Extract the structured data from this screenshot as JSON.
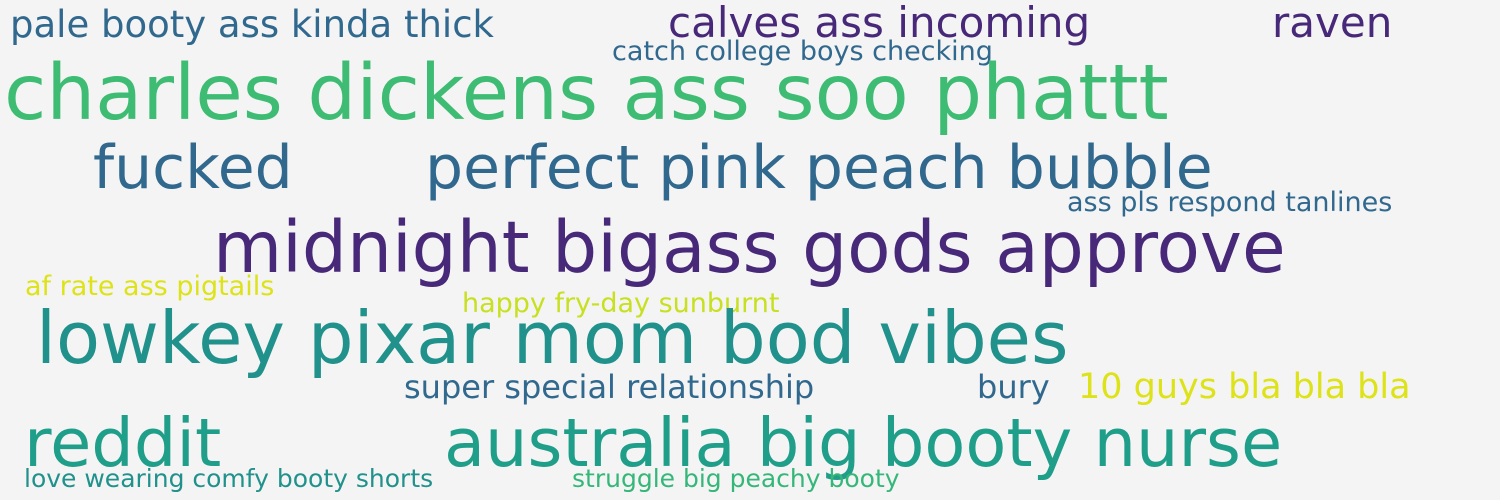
{
  "words": [
    {
      "text": "pale booty ass kinda thick",
      "color": "#31688e"
    },
    {
      "text": "calves ass incoming",
      "color": "#482878"
    },
    {
      "text": "raven",
      "color": "#482878"
    },
    {
      "text": "catch college boys checking",
      "color": "#31688e"
    },
    {
      "text": "charles dickens ass soo phattt",
      "color": "#3fbc73"
    },
    {
      "text": "fucked",
      "color": "#31688e"
    },
    {
      "text": "perfect pink peach bubble",
      "color": "#31688e"
    },
    {
      "text": "ass pls respond tanlines",
      "color": "#31688e"
    },
    {
      "text": "midnight bigass gods approve",
      "color": "#482878"
    },
    {
      "text": "af rate ass pigtails",
      "color": "#dde318"
    },
    {
      "text": "happy fry-day sunburnt",
      "color": "#c8e020"
    },
    {
      "text": "lowkey pixar mom bod vibes",
      "color": "#21918c"
    },
    {
      "text": "super special relationship",
      "color": "#31688e"
    },
    {
      "text": "bury",
      "color": "#31688e"
    },
    {
      "text": "10 guys bla bla bla",
      "color": "#dde318"
    },
    {
      "text": "reddit",
      "color": "#1f9e89"
    },
    {
      "text": "australia big booty nurse",
      "color": "#1f9e89"
    },
    {
      "text": "love wearing comfy booty shorts",
      "color": "#21918c"
    },
    {
      "text": "struggle big peachy booty",
      "color": "#35b779"
    }
  ]
}
